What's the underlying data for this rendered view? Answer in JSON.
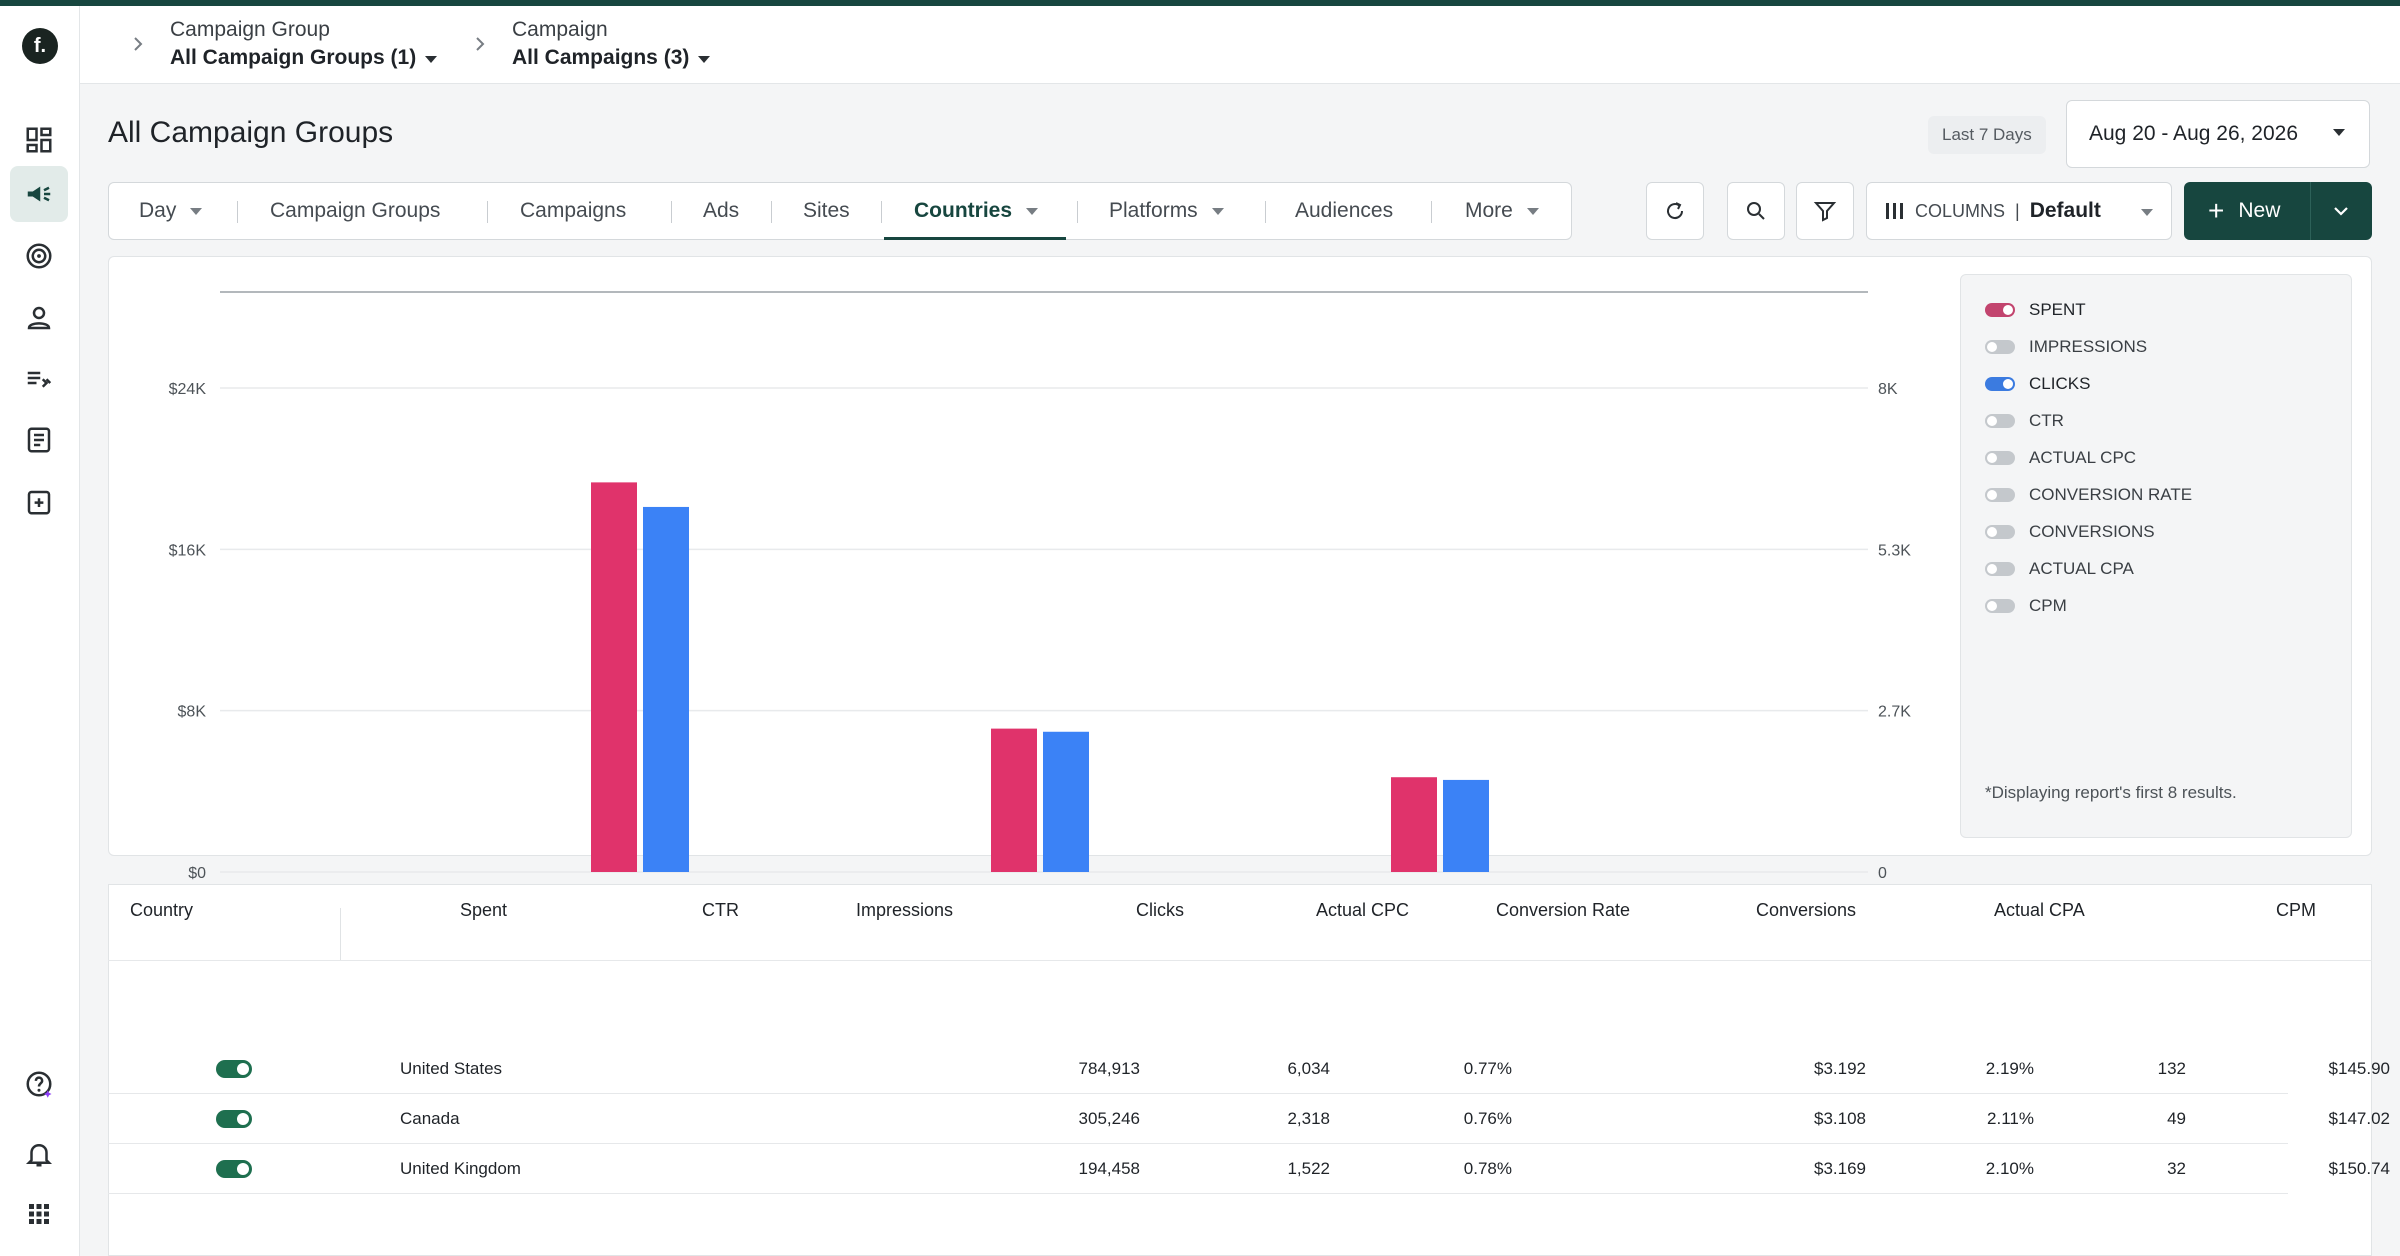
{
  "logo_letter": "f.",
  "breadcrumbs": [
    {
      "label": "Campaign Group",
      "value": "All Campaign Groups (1)"
    },
    {
      "label": "Campaign",
      "value": "All Campaigns (3)"
    }
  ],
  "page_title": "All Campaign Groups",
  "date_range": {
    "preset": "Last 7 Days",
    "value": "Aug 20 - Aug 26, 2026"
  },
  "tabs": [
    {
      "label": "Day",
      "dropdown": true
    },
    {
      "label": "Campaign Groups"
    },
    {
      "label": "Campaigns"
    },
    {
      "label": "Ads"
    },
    {
      "label": "Sites"
    },
    {
      "label": "Countries",
      "active": true,
      "dropdown": true
    },
    {
      "label": "Platforms",
      "dropdown": true
    },
    {
      "label": "Audiences"
    },
    {
      "label": "More",
      "dropdown": true
    }
  ],
  "toolbar": {
    "columns_label": "COLUMNS",
    "columns_value": "Default",
    "new_label": "New"
  },
  "colors": {
    "accent": "#17463f",
    "spent": "#e0336b",
    "clicks": "#3b82f6"
  },
  "metrics_legend": {
    "items": [
      {
        "label": "SPENT",
        "on": true,
        "color": "#c2446e"
      },
      {
        "label": "IMPRESSIONS",
        "on": false
      },
      {
        "label": "CLICKS",
        "on": true,
        "color": "#3b7be0"
      },
      {
        "label": "CTR",
        "on": false
      },
      {
        "label": "ACTUAL CPC",
        "on": false
      },
      {
        "label": "CONVERSION RATE",
        "on": false
      },
      {
        "label": "CONVERSIONS",
        "on": false
      },
      {
        "label": "ACTUAL CPA",
        "on": false
      },
      {
        "label": "CPM",
        "on": false
      }
    ],
    "note": "*Displaying report's first 8 results."
  },
  "chart_data": {
    "type": "bar",
    "categories": [
      "United States",
      "Canada",
      "United Kingdom"
    ],
    "series": [
      {
        "name": "SPENT",
        "axis": "left",
        "color": "#e0336b",
        "values": [
          19320,
          7110,
          4700
        ]
      },
      {
        "name": "CLICKS",
        "axis": "right",
        "color": "#3b82f6",
        "values": [
          6034,
          2318,
          1522
        ]
      }
    ],
    "y_left": {
      "ticks": [
        "$0",
        "$8K",
        "$16K",
        "$24K"
      ],
      "range": [
        0,
        24000
      ]
    },
    "y_right": {
      "ticks": [
        "0",
        "2.7K",
        "5.3K",
        "8K"
      ],
      "range": [
        0,
        8000
      ]
    },
    "grid": true
  },
  "table": {
    "headers": [
      "Country",
      "Spent",
      "CTR",
      "Impressions",
      "Clicks",
      "Actual CPC",
      "Conversion Rate",
      "Conversions",
      "Actual CPA",
      "CPM"
    ],
    "rows": [
      {
        "country": "United States",
        "impressions": "784,913",
        "clicks": "6,034",
        "ctr": "0.77%",
        "cpc": "$3.192",
        "conv_rate": "2.19%",
        "conversions": "132",
        "cpm": "$145.90"
      },
      {
        "country": "Canada",
        "impressions": "305,246",
        "clicks": "2,318",
        "ctr": "0.76%",
        "cpc": "$3.108",
        "conv_rate": "2.11%",
        "conversions": "49",
        "cpm": "$147.02"
      },
      {
        "country": "United Kingdom",
        "impressions": "194,458",
        "clicks": "1,522",
        "ctr": "0.78%",
        "cpc": "$3.169",
        "conv_rate": "2.10%",
        "conversions": "32",
        "cpm": "$150.74"
      }
    ]
  }
}
